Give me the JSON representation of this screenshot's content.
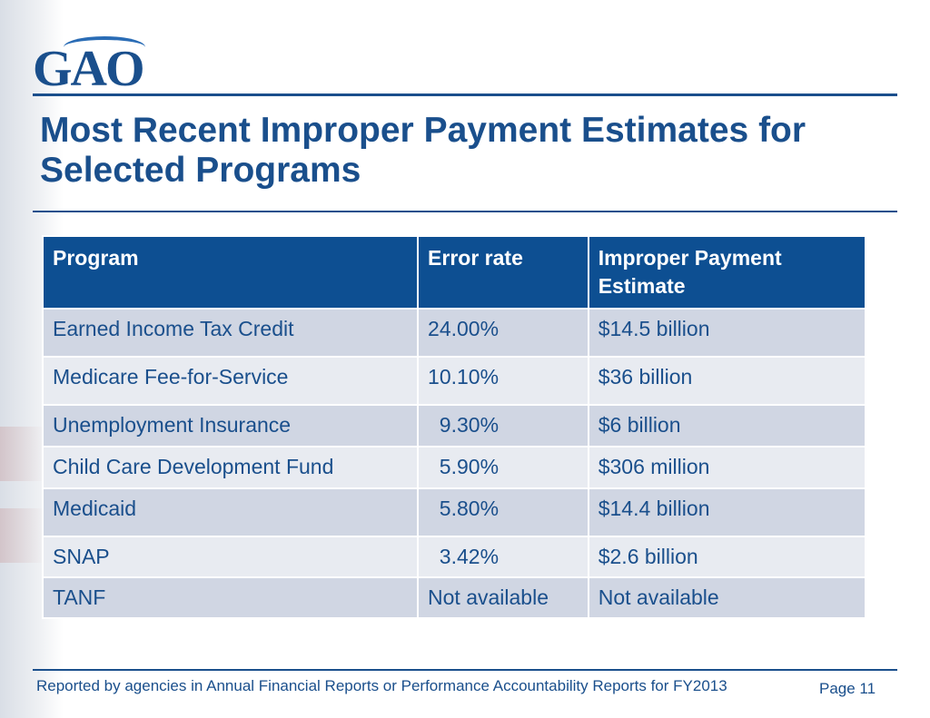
{
  "logo": {
    "text": "GAO"
  },
  "title": "Most Recent Improper Payment Estimates for Selected Programs",
  "table": {
    "headers": [
      "Program",
      "Error rate",
      "Improper Payment Estimate"
    ],
    "rows": [
      [
        "Earned Income Tax Credit",
        "24.00%",
        "$14.5 billion"
      ],
      [
        "Medicare Fee-for-Service",
        "10.10%",
        "$36 billion"
      ],
      [
        "Unemployment Insurance",
        "  9.30%",
        "$6 billion"
      ],
      [
        "Child Care Development Fund",
        "  5.90%",
        "$306 million"
      ],
      [
        "Medicaid",
        "  5.80%",
        "$14.4 billion"
      ],
      [
        "SNAP",
        "  3.42%",
        "$2.6 billion"
      ],
      [
        "TANF",
        "Not available",
        "Not available"
      ]
    ]
  },
  "footer": {
    "note": "Reported by agencies in Annual Financial Reports or Performance Accountability Reports for FY2013",
    "page": "Page 11"
  }
}
